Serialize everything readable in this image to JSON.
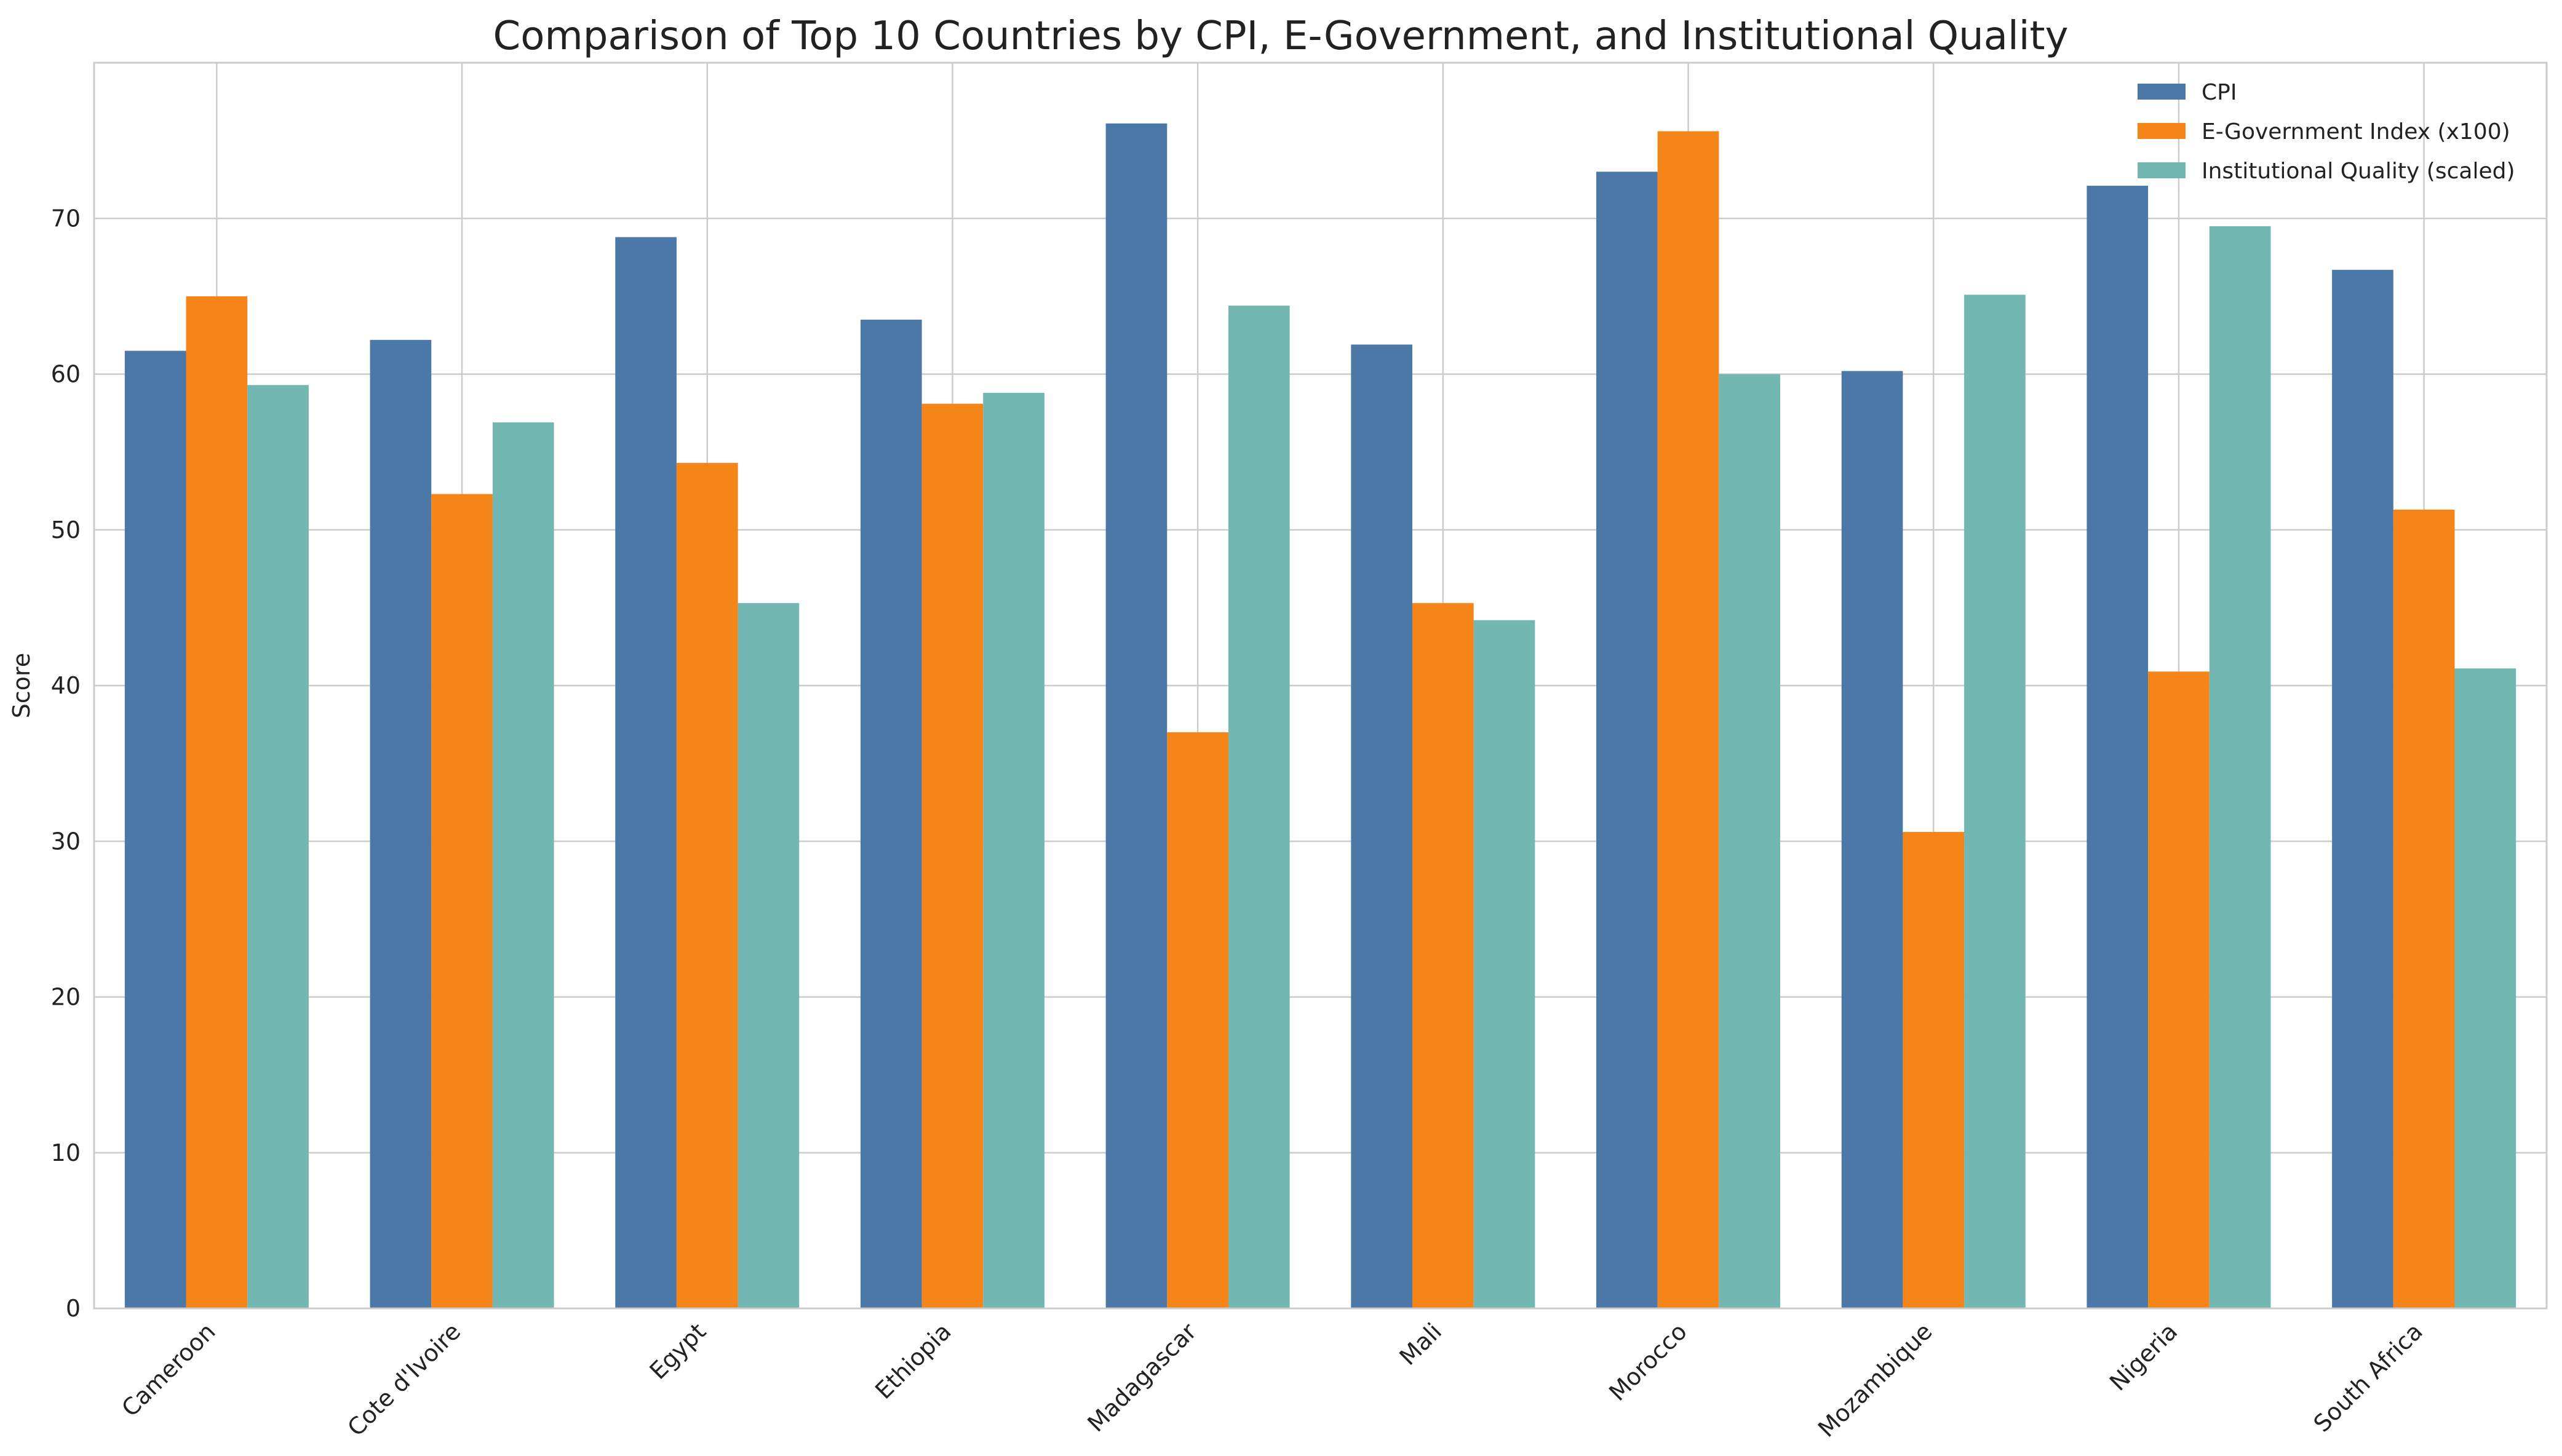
{
  "chart_data": {
    "type": "bar",
    "title": "Comparison of Top 10 Countries by CPI, E-Government, and Institutional Quality",
    "xlabel": "",
    "ylabel": "Score",
    "ylim": [
      0,
      80
    ],
    "yticks": [
      0,
      10,
      20,
      30,
      40,
      50,
      60,
      70
    ],
    "grid": true,
    "legend_position": "top-right",
    "categories": [
      "Cameroon",
      "Cote d'Ivoire",
      "Egypt",
      "Ethiopia",
      "Madagascar",
      "Mali",
      "Morocco",
      "Mozambique",
      "Nigeria",
      "South Africa"
    ],
    "series": [
      {
        "name": "CPI",
        "color": "#4c78a8",
        "values": [
          61.5,
          62.2,
          68.8,
          63.5,
          76.1,
          61.9,
          73.0,
          60.2,
          72.1,
          66.7
        ]
      },
      {
        "name": "E-Government Index (x100)",
        "color": "#f58518",
        "values": [
          65.0,
          52.3,
          54.3,
          58.1,
          37.0,
          45.3,
          75.6,
          30.6,
          40.9,
          51.3
        ]
      },
      {
        "name": "Institutional Quality (scaled)",
        "color": "#72b7b2",
        "values": [
          59.3,
          56.9,
          45.3,
          58.8,
          64.4,
          44.2,
          60.0,
          65.1,
          69.5,
          41.1
        ]
      }
    ]
  }
}
